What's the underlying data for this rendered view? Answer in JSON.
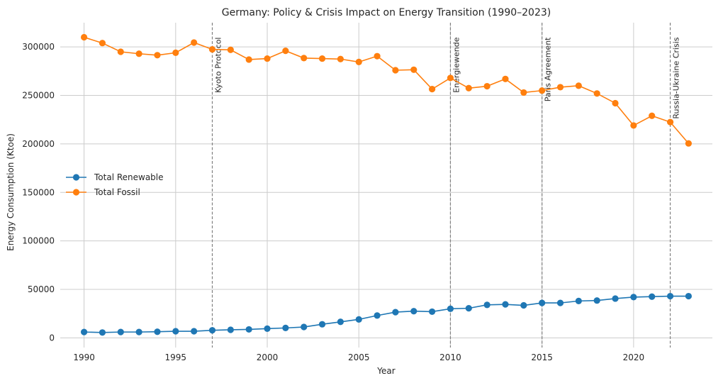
{
  "chart_data": {
    "type": "line",
    "title": "Germany: Policy & Crisis Impact on Energy Transition (1990–2023)",
    "xlabel": "Year",
    "ylabel": "Energy Consumption (Ktoe)",
    "xlim": [
      1988.7,
      2024.3
    ],
    "ylim": [
      -10000,
      325000
    ],
    "xticks": [
      1990,
      1995,
      2000,
      2005,
      2010,
      2015,
      2020
    ],
    "yticks": [
      0,
      50000,
      100000,
      150000,
      200000,
      250000,
      300000
    ],
    "grid": true,
    "legend_position": "center-left",
    "x": [
      1990,
      1991,
      1992,
      1993,
      1994,
      1995,
      1996,
      1997,
      1998,
      1999,
      2000,
      2001,
      2002,
      2003,
      2004,
      2005,
      2006,
      2007,
      2008,
      2009,
      2010,
      2011,
      2012,
      2013,
      2014,
      2015,
      2016,
      2017,
      2018,
      2019,
      2020,
      2021,
      2022,
      2023
    ],
    "series": [
      {
        "name": "Total Renewable",
        "color": "#1f77b4",
        "values": [
          6000,
          5500,
          6000,
          6000,
          6300,
          6800,
          6800,
          7800,
          8300,
          8700,
          9500,
          10200,
          11200,
          14000,
          16500,
          19000,
          23000,
          26500,
          27500,
          27000,
          30000,
          30500,
          34000,
          34500,
          33500,
          36000,
          36000,
          38000,
          38500,
          40500,
          42000,
          42500,
          43000,
          43000
        ]
      },
      {
        "name": "Total Fossil",
        "color": "#ff7f0e",
        "values": [
          310000,
          304000,
          295000,
          293000,
          291500,
          294000,
          304500,
          297500,
          297000,
          287000,
          288000,
          296000,
          288500,
          288000,
          287500,
          284500,
          290500,
          276000,
          276500,
          256500,
          268000,
          257500,
          259500,
          267000,
          253000,
          255000,
          258500,
          260000,
          252000,
          242000,
          219000,
          229000,
          222500,
          200500
        ]
      }
    ],
    "events": [
      {
        "year": 1997,
        "label": "Kyoto Protocol"
      },
      {
        "year": 2010,
        "label": "Energiewende"
      },
      {
        "year": 2015,
        "label": "Paris Agreement"
      },
      {
        "year": 2022,
        "label": "Russia-Ukraine Crisis"
      }
    ]
  }
}
